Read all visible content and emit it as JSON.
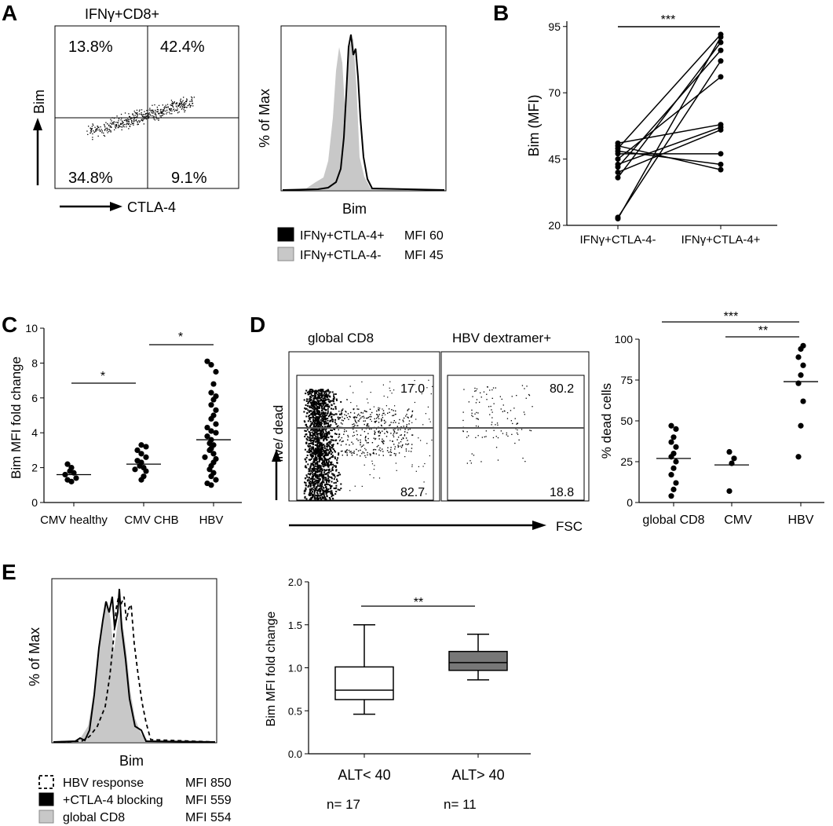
{
  "panel_letters": {
    "a": "A",
    "b": "B",
    "c": "C",
    "d": "D",
    "e": "E"
  },
  "panel_a": {
    "dot_title": "IFNγ+CD8+",
    "quadrants": {
      "ul": "13.8%",
      "ur": "42.4%",
      "ll": "34.8%",
      "lr": "9.1%"
    },
    "y_axis": "Bim",
    "x_axis": "CTLA-4",
    "hist_ylabel": "% of Max",
    "hist_xlabel": "Bim",
    "legend": [
      {
        "name": "IFNγ+CTLA-4+",
        "mfi": "MFI 60",
        "color": "#000000"
      },
      {
        "name": "IFNγ+CTLA-4-",
        "mfi": "MFI 45",
        "color": "#c8c8c8"
      }
    ]
  },
  "panel_b": {
    "ylabel": "Bim (MFI)",
    "sig": "***",
    "chart_data": {
      "type": "line",
      "categories": [
        "IFNγ+CTLA-4-",
        "IFNγ+CTLA-4+"
      ],
      "yticks": [
        "20",
        "45",
        "70",
        "95"
      ],
      "ylim": [
        20,
        97
      ],
      "pairs": [
        [
          23,
          82
        ],
        [
          22.5,
          91
        ],
        [
          38,
          89
        ],
        [
          40,
          56
        ],
        [
          42,
          86
        ],
        [
          43,
          57
        ],
        [
          45,
          76
        ],
        [
          47,
          47
        ],
        [
          49,
          92
        ],
        [
          48,
          43
        ],
        [
          50,
          41
        ],
        [
          51,
          58
        ]
      ]
    }
  },
  "panel_c": {
    "ylabel": "Bim MFI fold change",
    "sig1": "*",
    "sig2": "*",
    "chart_data": {
      "type": "scatter",
      "categories": [
        "CMV healthy",
        "CMV CHB",
        "HBV"
      ],
      "yticks": [
        "0",
        "2",
        "4",
        "6",
        "8",
        "10"
      ],
      "ylim": [
        0,
        10
      ],
      "means": [
        1.6,
        2.2,
        3.6
      ],
      "groups": [
        [
          1.2,
          1.3,
          1.4,
          1.6,
          1.7,
          1.8,
          2.0,
          2.2
        ],
        [
          1.3,
          1.5,
          1.8,
          1.9,
          2.0,
          2.1,
          2.3,
          2.4,
          2.6,
          2.8,
          3.0,
          3.2,
          3.3
        ],
        [
          1.0,
          1.1,
          1.3,
          1.5,
          1.7,
          1.9,
          2.1,
          2.3,
          2.5,
          2.6,
          2.8,
          3.0,
          3.1,
          3.3,
          3.4,
          3.6,
          3.8,
          4.0,
          4.1,
          4.3,
          4.5,
          4.8,
          5.0,
          5.3,
          5.6,
          5.9,
          6.1,
          6.3,
          6.8,
          7.5,
          7.9,
          8.1
        ]
      ]
    }
  },
  "panel_d": {
    "title1": "global CD8",
    "title2": "HBV dextramer+",
    "p1_top": "17.0",
    "p1_bot": "82.7",
    "p2_top": "80.2",
    "p2_bot": "18.8",
    "y_axis": "live/ dead",
    "x_axis": "FSC",
    "ylabel": "% dead cells",
    "sig1": "***",
    "sig2": "**",
    "chart_data": {
      "type": "scatter",
      "categories": [
        "global CD8",
        "CMV",
        "HBV"
      ],
      "yticks": [
        "0",
        "25",
        "50",
        "75",
        "100"
      ],
      "ylim": [
        0,
        100
      ],
      "means": [
        27,
        23,
        74
      ],
      "groups": [
        [
          4,
          8,
          12,
          17,
          21,
          25,
          28,
          30,
          34,
          37,
          40,
          45,
          47
        ],
        [
          7,
          24,
          27,
          31
        ],
        [
          28,
          47,
          62,
          73,
          78,
          84,
          89,
          94,
          96
        ]
      ]
    }
  },
  "panel_e": {
    "hist_ylabel": "% of Max",
    "hist_xlabel": "Bim",
    "legend": [
      {
        "name": "HBV response",
        "mfi": "MFI 850"
      },
      {
        "name": "+CTLA-4 blocking",
        "mfi": "MFI 559"
      },
      {
        "name": "global CD8",
        "mfi": "MFI 554"
      }
    ],
    "ylabel": "Bim MFI fold change",
    "sig": "**",
    "n_labels": [
      "n= 17",
      "n= 11"
    ],
    "chart_data": {
      "type": "box",
      "categories": [
        "ALT< 40",
        "ALT> 40"
      ],
      "yticks": [
        "0.0",
        "0.5",
        "1.0",
        "1.5",
        "2.0"
      ],
      "ylim": [
        0,
        2
      ],
      "boxes": [
        {
          "min": 0.46,
          "q1": 0.63,
          "median": 0.74,
          "q3": 1.01,
          "max": 1.5,
          "fill": "#ffffff"
        },
        {
          "min": 0.86,
          "q1": 0.97,
          "median": 1.06,
          "q3": 1.19,
          "max": 1.39,
          "fill": "#777777"
        }
      ]
    }
  }
}
